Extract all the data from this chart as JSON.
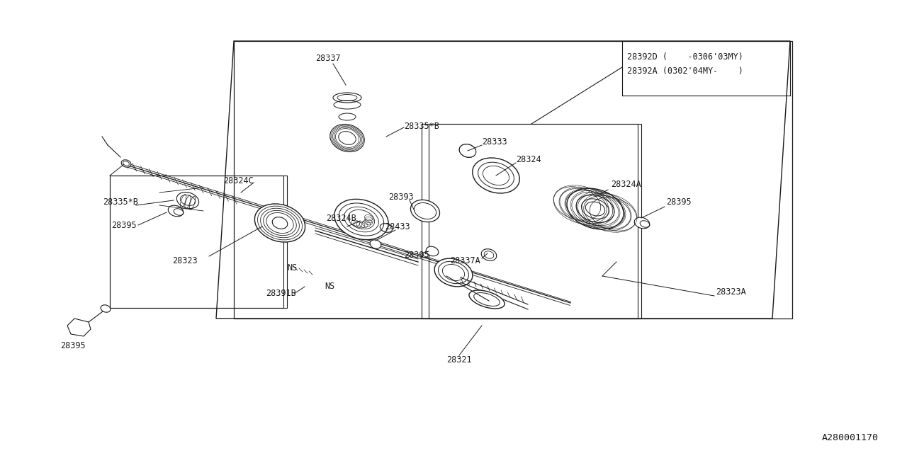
{
  "bg_color": "#ffffff",
  "line_color": "#1a1a1a",
  "fig_width": 12.8,
  "fig_height": 6.4,
  "dpi": 100,
  "diagram_id": "A280001170",
  "font_size": 8.5,
  "mono_font": "monospace",
  "label_28337": "28337",
  "label_28392D": "28392D (    -0306'03MY)",
  "label_28392A": "28392A (0302'04MY-    )",
  "label_28335B_top": "28335*B",
  "label_28333": "28333",
  "label_28324": "28324",
  "label_28393": "28393",
  "label_28324C": "28324C",
  "label_28335B_left": "28335*B",
  "label_28395_left": "28395",
  "label_28323": "28323",
  "label_28324B": "28324B",
  "label_28433": "28433",
  "label_NS1": "NS",
  "label_NS2": "NS",
  "label_28395_mid": "28395",
  "label_28337A": "28337A",
  "label_28391B": "28391B",
  "label_28321": "28321",
  "label_28323A": "28323A",
  "label_28324A": "28324A",
  "label_28395_right": "28395",
  "label_28395_bottom": "28395"
}
